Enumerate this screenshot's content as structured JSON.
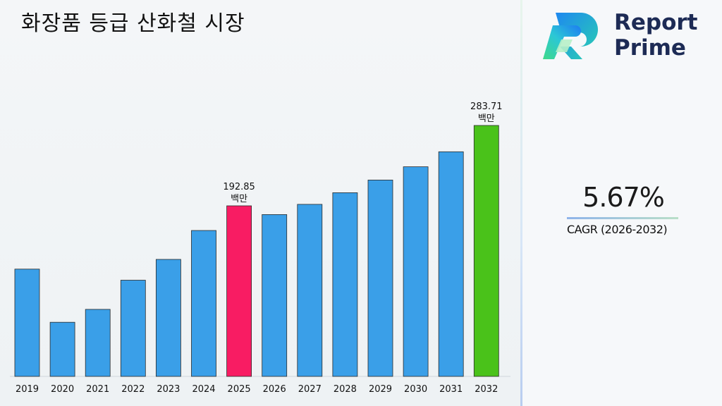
{
  "page": {
    "title": "화장품 등급 산화철 시장"
  },
  "logo": {
    "line1": "Report",
    "line2": "Prime",
    "name": "reportprime-logo-icon"
  },
  "cagr": {
    "value": "5.67%",
    "label": "CAGR (2026-2032)"
  },
  "colors": {
    "bar": "#3a9fe8",
    "highlight_2025": "#f81c63",
    "highlight_2032": "#4ac21a",
    "logo_text": "#1d2b55"
  },
  "chart_data": {
    "type": "bar",
    "title": "화장품 등급 산화철 시장",
    "xlabel": "",
    "ylabel": "",
    "categories": [
      "2019",
      "2020",
      "2021",
      "2022",
      "2023",
      "2024",
      "2025",
      "2026",
      "2027",
      "2028",
      "2029",
      "2030",
      "2031",
      "2032"
    ],
    "values": [
      121.3,
      61.2,
      75.8,
      108.8,
      132.3,
      165.0,
      192.85,
      183.0,
      194.5,
      207.7,
      222.0,
      237.0,
      254.0,
      283.71
    ],
    "ylim": [
      0,
      300
    ],
    "grid": false,
    "annotations": [
      {
        "category": "2025",
        "value": "192.85",
        "unit": "백만"
      },
      {
        "category": "2032",
        "value": "283.71",
        "unit": "백만"
      }
    ]
  }
}
